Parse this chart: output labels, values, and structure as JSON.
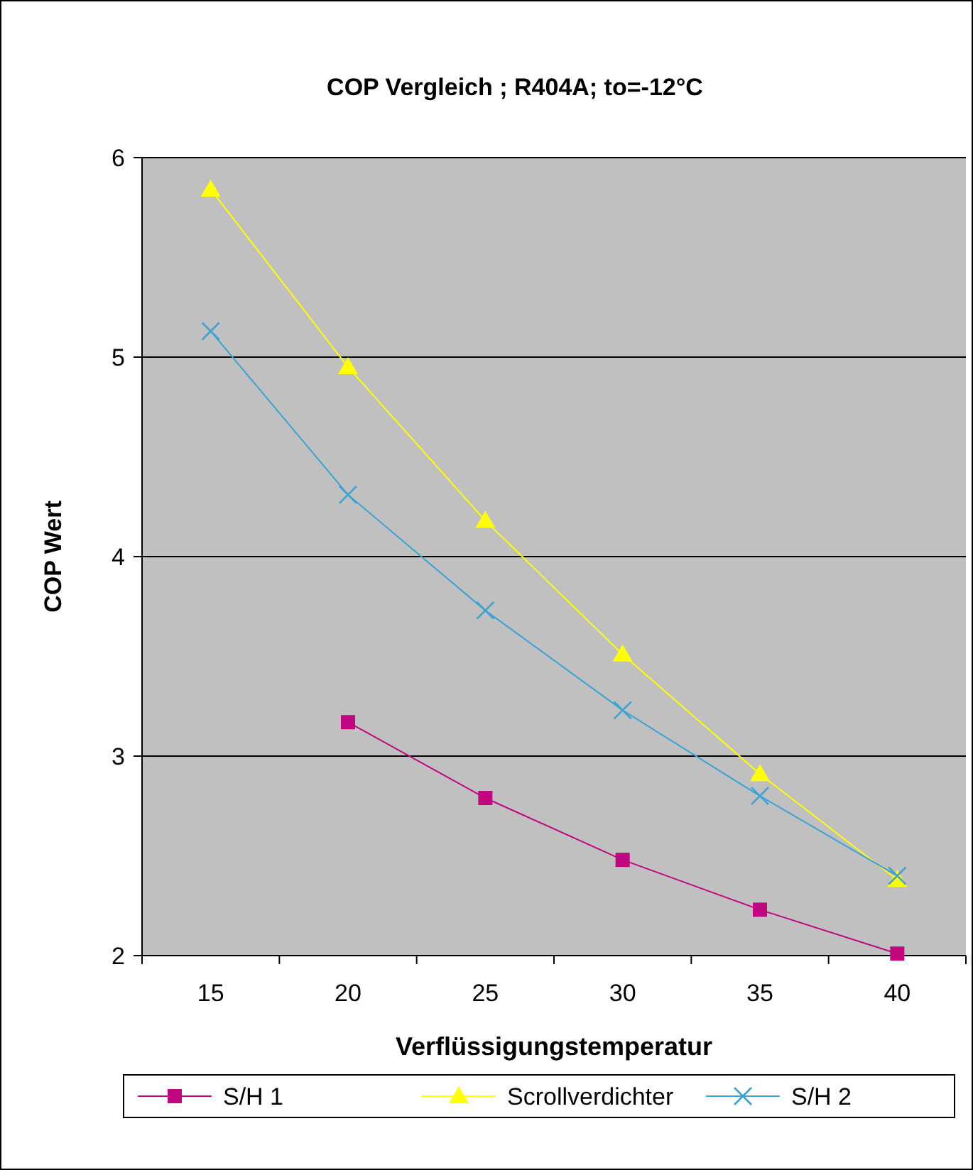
{
  "chart_data": {
    "type": "line",
    "title": "COP Vergleich ; R404A; to=-12°C",
    "xlabel": "Verflüssigungstemperatur",
    "ylabel": "COP Wert",
    "categories": [
      "15",
      "20",
      "25",
      "30",
      "35",
      "40"
    ],
    "series": [
      {
        "name": "S/H 1",
        "color": "#c0077f",
        "marker": "square",
        "values": [
          null,
          3.17,
          2.79,
          2.48,
          2.23,
          2.01
        ]
      },
      {
        "name": "Scrollverdichter",
        "color": "#ffff00",
        "marker": "triangle",
        "values": [
          5.84,
          4.95,
          4.18,
          3.51,
          2.91,
          2.38
        ]
      },
      {
        "name": "S/H 2",
        "color": "#3aa3d6",
        "marker": "cross",
        "values": [
          5.13,
          4.31,
          3.73,
          3.23,
          2.8,
          2.4
        ]
      }
    ],
    "ylim": [
      2,
      6
    ],
    "yticks": [
      2,
      3,
      4,
      5,
      6
    ],
    "grid": "y",
    "legend": "bottom",
    "line_style": "solid"
  }
}
